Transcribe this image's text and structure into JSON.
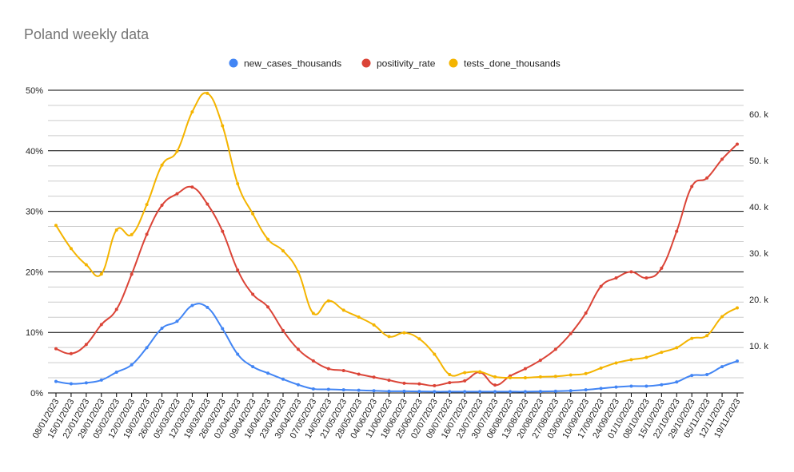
{
  "chart_data": {
    "type": "line",
    "title": "Poland weekly data",
    "legend_position": "top",
    "grid": true,
    "categories": [
      "08/01/2023",
      "15/01/2023",
      "22/01/2023",
      "29/01/2023",
      "05/02/2023",
      "12/02/2023",
      "19/02/2023",
      "26/02/2023",
      "05/03/2023",
      "12/03/2023",
      "19/03/2023",
      "26/03/2023",
      "02/04/2023",
      "09/04/2023",
      "16/04/2023",
      "23/04/2023",
      "30/04/2023",
      "07/05/2023",
      "14/05/2023",
      "21/05/2023",
      "28/05/2023",
      "04/06/2023",
      "11/06/2023",
      "18/06/2023",
      "25/06/2023",
      "02/07/2023",
      "09/07/2023",
      "16/07/2023",
      "23/07/2023",
      "30/07/2023",
      "06/08/2023",
      "13/08/2023",
      "20/08/2023",
      "27/08/2023",
      "03/09/2023",
      "10/09/2023",
      "17/09/2023",
      "24/09/2023",
      "01/10/2023",
      "08/10/2023",
      "15/10/2023",
      "22/10/2023",
      "29/10/2023",
      "05/11/2023",
      "12/11/2023",
      "19/11/2023"
    ],
    "left_axis": {
      "min": 0,
      "max": 0.5,
      "ticks": [
        0,
        0.1,
        0.2,
        0.3,
        0.4,
        0.5
      ],
      "tick_labels": [
        "0%",
        "10%",
        "20%",
        "30%",
        "40%",
        "50%"
      ]
    },
    "right_axis": {
      "ticks": [
        10,
        20,
        30,
        40,
        50,
        60
      ],
      "tick_labels": [
        "10. k",
        "20. k",
        "30. k",
        "40. k",
        "50. k",
        "60. k"
      ]
    },
    "series": [
      {
        "name": "new_cases_thousands",
        "color": "#4285f4",
        "axis": "right",
        "values": [
          2.3,
          1.8,
          2.0,
          2.6,
          4.3,
          5.9,
          9.6,
          13.8,
          15.3,
          18.7,
          18.3,
          13.7,
          8.2,
          5.5,
          4.1,
          2.8,
          1.6,
          0.7,
          0.6,
          0.5,
          0.4,
          0.3,
          0.2,
          0.2,
          0.15,
          0.1,
          0.1,
          0.1,
          0.1,
          0.1,
          0.1,
          0.1,
          0.15,
          0.2,
          0.3,
          0.5,
          0.8,
          1.1,
          1.3,
          1.3,
          1.6,
          2.2,
          3.6,
          3.8,
          5.5,
          6.7
        ]
      },
      {
        "name": "positivity_rate",
        "color": "#db4437",
        "axis": "left",
        "values": [
          0.073,
          0.065,
          0.08,
          0.113,
          0.138,
          0.196,
          0.262,
          0.31,
          0.329,
          0.34,
          0.312,
          0.267,
          0.203,
          0.163,
          0.142,
          0.103,
          0.072,
          0.053,
          0.04,
          0.037,
          0.031,
          0.026,
          0.021,
          0.016,
          0.015,
          0.012,
          0.017,
          0.02,
          0.034,
          0.013,
          0.028,
          0.04,
          0.054,
          0.072,
          0.098,
          0.132,
          0.176,
          0.19,
          0.2,
          0.19,
          0.206,
          0.267,
          0.341,
          0.355,
          0.386,
          0.411
        ]
      },
      {
        "name": "tests_done_thousands",
        "color": "#f4b400",
        "axis": "right",
        "values": [
          36.0,
          31.0,
          27.5,
          25.5,
          35.0,
          34.0,
          40.5,
          49.0,
          52.0,
          60.5,
          64.5,
          57.5,
          45.0,
          38.5,
          33.0,
          30.5,
          26.0,
          17.0,
          19.7,
          17.7,
          16.2,
          14.5,
          12.0,
          12.8,
          11.5,
          8.2,
          3.8,
          4.2,
          4.4,
          3.3,
          3.1,
          3.1,
          3.3,
          3.4,
          3.7,
          4.0,
          5.2,
          6.3,
          7.0,
          7.5,
          8.6,
          9.6,
          11.6,
          12.2,
          16.3,
          18.2
        ]
      }
    ]
  }
}
